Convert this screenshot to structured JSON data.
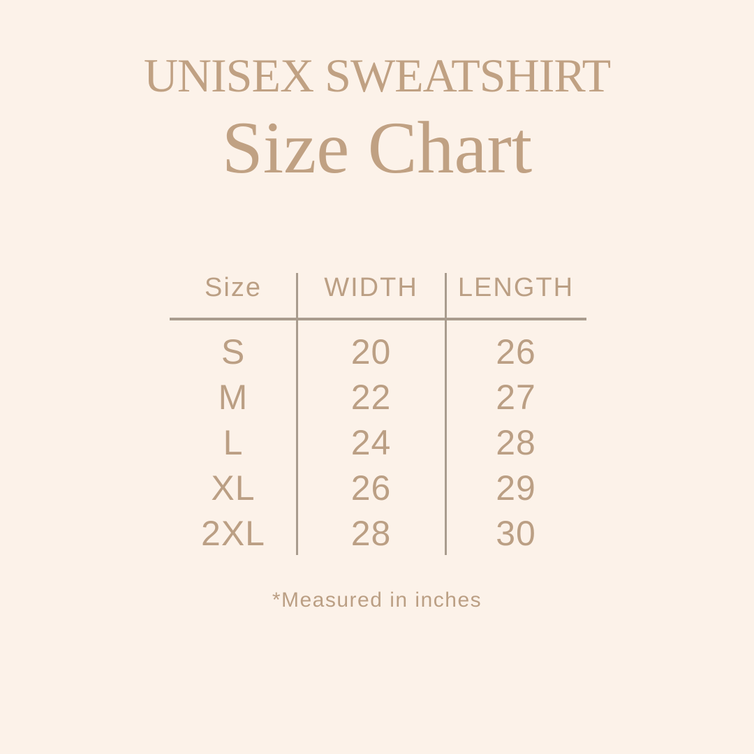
{
  "title": "UNISEX SWEATSHIRT",
  "subtitle": "Size Chart",
  "footnote": "*Measured in inches",
  "colors": {
    "background": "#fcf2e9",
    "title_text": "#c0a183",
    "table_text": "#bb9f84",
    "divider_line": "#a99c8e"
  },
  "chart_data": {
    "type": "table",
    "title": "UNISEX SWEATSHIRT",
    "subtitle": "Size Chart",
    "columns": [
      "Size",
      "WIDTH",
      "LENGTH"
    ],
    "rows": [
      [
        "S",
        "20",
        "26"
      ],
      [
        "M",
        "22",
        "27"
      ],
      [
        "L",
        "24",
        "28"
      ],
      [
        "XL",
        "26",
        "29"
      ],
      [
        "2XL",
        "28",
        "30"
      ]
    ],
    "units": "inches",
    "note": "*Measured in inches",
    "layout": "header row separated by horizontal rule; two vertical rules between the three columns"
  }
}
